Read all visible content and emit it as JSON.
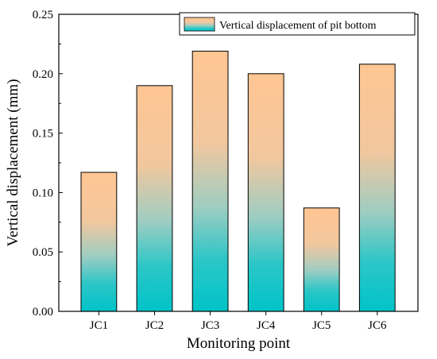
{
  "chart_data": {
    "type": "bar",
    "title": "",
    "xlabel": "Monitoring point",
    "ylabel": "Vertical displacement (mm)",
    "categories": [
      "JC1",
      "JC2",
      "JC3",
      "JC4",
      "JC5",
      "JC6"
    ],
    "series": [
      {
        "name": "Vertical displacement of pit bottom",
        "values": [
          0.117,
          0.19,
          0.219,
          0.2,
          0.087,
          0.208
        ]
      }
    ],
    "ylim": [
      0,
      0.25
    ],
    "yticks": [
      "0.00",
      "0.05",
      "0.10",
      "0.15",
      "0.20",
      "0.25"
    ],
    "grid": false,
    "legend_position": "top-right",
    "colors": {
      "bar_top": "#FFC693",
      "bar_bottom": "#00C4C8",
      "axis": "#000000"
    }
  }
}
